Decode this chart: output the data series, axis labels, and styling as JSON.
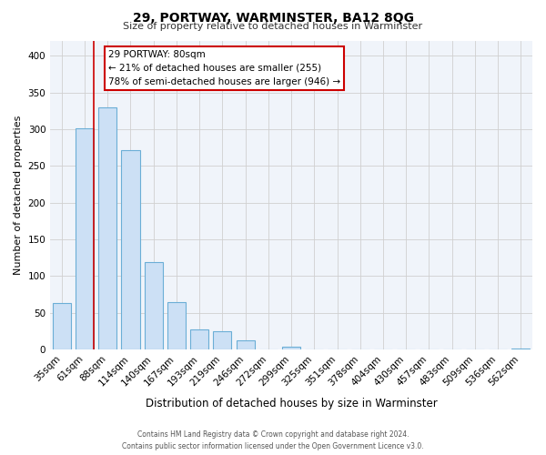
{
  "title": "29, PORTWAY, WARMINSTER, BA12 8QG",
  "subtitle": "Size of property relative to detached houses in Warminster",
  "xlabel": "Distribution of detached houses by size in Warminster",
  "ylabel": "Number of detached properties",
  "bar_color": "#cce0f5",
  "bar_edge_color": "#6baed6",
  "grid_color": "#d0d0d0",
  "background_color": "#ffffff",
  "categories": [
    "35sqm",
    "61sqm",
    "88sqm",
    "114sqm",
    "140sqm",
    "167sqm",
    "193sqm",
    "219sqm",
    "246sqm",
    "272sqm",
    "299sqm",
    "325sqm",
    "351sqm",
    "378sqm",
    "404sqm",
    "430sqm",
    "457sqm",
    "483sqm",
    "509sqm",
    "536sqm",
    "562sqm"
  ],
  "values": [
    63,
    301,
    330,
    272,
    119,
    64,
    27,
    25,
    13,
    0,
    4,
    0,
    0,
    0,
    0,
    0,
    0,
    0,
    0,
    0,
    2
  ],
  "ylim": [
    0,
    420
  ],
  "yticks": [
    0,
    50,
    100,
    150,
    200,
    250,
    300,
    350,
    400
  ],
  "red_line_x": 1.38,
  "annotation_title": "29 PORTWAY: 80sqm",
  "annotation_line1": "← 21% of detached houses are smaller (255)",
  "annotation_line2": "78% of semi-detached houses are larger (946) →",
  "annotation_box_color": "#ffffff",
  "annotation_box_edge": "#cc0000",
  "footer_line1": "Contains HM Land Registry data © Crown copyright and database right 2024.",
  "footer_line2": "Contains public sector information licensed under the Open Government Licence v3.0."
}
